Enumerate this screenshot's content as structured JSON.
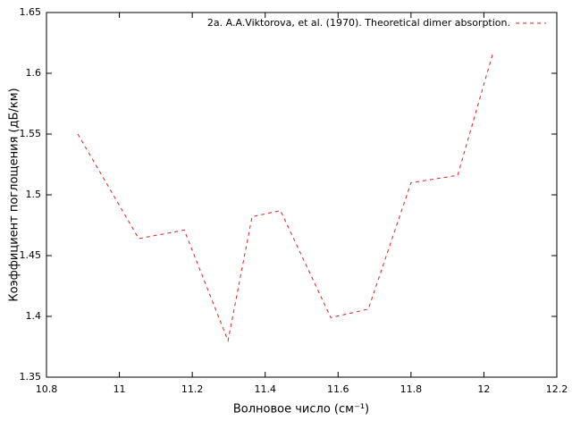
{
  "chart_data": {
    "type": "line",
    "x_label": "Волновое число (см⁻¹)",
    "y_label": "Коэффициент поглощения (дБ/км)",
    "x": [
      10.886,
      11.053,
      11.178,
      11.298,
      11.364,
      11.442,
      11.58,
      11.683,
      11.8,
      11.928,
      12.026
    ],
    "series": [
      {
        "name": "2a. A.A.Viktorova, et al. (1970). Theoretical dimer absorption.",
        "color": "#e0201b",
        "values": [
          1.55,
          1.464,
          1.471,
          1.38,
          1.482,
          1.487,
          1.399,
          1.406,
          1.51,
          1.516,
          1.618
        ]
      }
    ],
    "xlim": [
      10.8,
      12.2
    ],
    "xticks": [
      10.8,
      11,
      11.2,
      11.4,
      11.6,
      11.8,
      12,
      12.2
    ],
    "ylim": [
      1.35,
      1.65
    ],
    "yticks": [
      1.35,
      1.4,
      1.45,
      1.5,
      1.55,
      1.6,
      1.65
    ],
    "grid": false,
    "legend": "top-right"
  }
}
